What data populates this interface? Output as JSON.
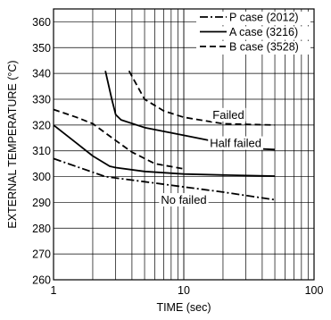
{
  "chart_data": {
    "type": "line",
    "title": "",
    "xlabel": "TIME  (sec)",
    "ylabel": "EXTERNAL TEMPERATURE (°C)",
    "xscale": "log",
    "xlim": [
      1,
      100
    ],
    "ylim": [
      260,
      365
    ],
    "x_ticks": [
      1,
      10,
      100
    ],
    "x_tick_labels": [
      "1",
      "10",
      "100"
    ],
    "y_ticks": [
      260,
      270,
      280,
      290,
      300,
      310,
      320,
      330,
      340,
      350,
      360
    ],
    "y_tick_labels": [
      "260",
      "270",
      "280",
      "290",
      "300",
      "310",
      "320",
      "330",
      "340",
      "350",
      "360"
    ],
    "grid": true,
    "legend_position": "top-right",
    "series": [
      {
        "name": "P case (2012)",
        "line_style": "dash-dot",
        "curves": [
          {
            "x": [
              1,
              2.5,
              5,
              10,
              20,
              50
            ],
            "y": [
              307,
              300,
              298,
              296,
              294,
              291
            ]
          }
        ]
      },
      {
        "name": "A case (3216)",
        "line_style": "solid",
        "curves": [
          {
            "x": [
              1,
              1.5,
              2,
              2.7,
              3,
              5,
              10,
              20,
              50
            ],
            "y": [
              320,
              313,
              308,
              304,
              303.5,
              302,
              301,
              300.6,
              300.2
            ]
          },
          {
            "x": [
              2.5,
              2.8,
              3.0,
              3.3,
              5,
              10,
              20,
              30,
              50
            ],
            "y": [
              341,
              330,
              324,
              322,
              319,
              316,
              313,
              311,
              310.5
            ]
          }
        ]
      },
      {
        "name": "B case (3528)",
        "line_style": "dashed",
        "curves": [
          {
            "x": [
              1,
              1.5,
              2,
              3,
              4,
              6,
              10
            ],
            "y": [
              326,
              323,
              320.5,
              314,
              309.5,
              305,
              303
            ]
          },
          {
            "x": [
              3.8,
              4.3,
              5,
              7,
              10,
              20,
              50
            ],
            "y": [
              341,
              336,
              330,
              325.5,
              323,
              320.5,
              320
            ]
          }
        ]
      }
    ],
    "annotations": [
      {
        "text": "Failed",
        "x": 22,
        "y": 324
      },
      {
        "text": "Half failed",
        "x": 25,
        "y": 313
      },
      {
        "text": "No failed",
        "x": 10,
        "y": 291
      }
    ]
  }
}
